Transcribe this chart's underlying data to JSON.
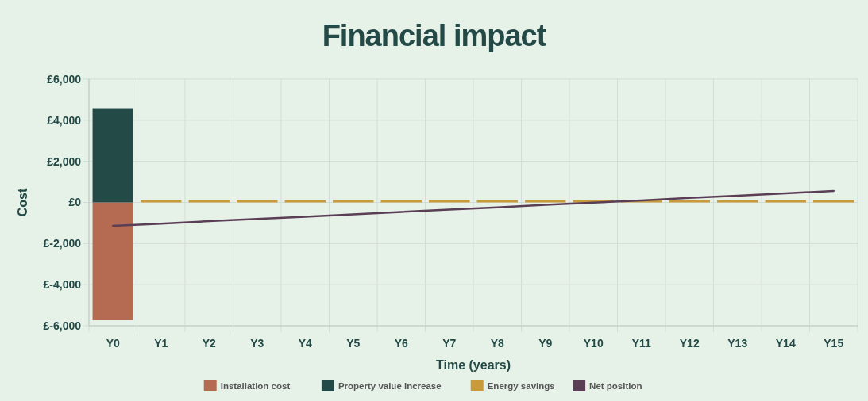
{
  "chart_data": {
    "type": "bar",
    "stacked": true,
    "title": "Financial impact",
    "xlabel": "Time (years)",
    "ylabel": "Cost",
    "categories": [
      "Y0",
      "Y1",
      "Y2",
      "Y3",
      "Y4",
      "Y5",
      "Y6",
      "Y7",
      "Y8",
      "Y9",
      "Y10",
      "Y11",
      "Y12",
      "Y13",
      "Y14",
      "Y15"
    ],
    "series": [
      {
        "name": "Installation cost",
        "color": "#b56b52",
        "values": [
          -5730,
          null,
          null,
          null,
          null,
          null,
          null,
          null,
          null,
          null,
          null,
          null,
          null,
          null,
          null,
          null
        ]
      },
      {
        "name": "Property value increase",
        "color": "#244a47",
        "values": [
          4590,
          null,
          null,
          null,
          null,
          null,
          null,
          null,
          null,
          null,
          null,
          null,
          null,
          null,
          null,
          null
        ]
      },
      {
        "name": "Energy savings",
        "color": "#c99a3a",
        "values": [
          null,
          110,
          110,
          110,
          110,
          110,
          110,
          110,
          110,
          110,
          110,
          110,
          110,
          110,
          110,
          110
        ]
      },
      {
        "name": "Net position",
        "type": "line",
        "color": "#5a3e55",
        "values": [
          -1140,
          -1030,
          -910,
          -800,
          -690,
          -580,
          -460,
          -350,
          -240,
          -120,
          -10,
          100,
          220,
          330,
          440,
          560
        ]
      }
    ],
    "ylim": [
      -6000,
      6000
    ],
    "yticks": [
      {
        "value": -6000,
        "label": "£-6,000"
      },
      {
        "value": -4000,
        "label": "£-4,000"
      },
      {
        "value": -2000,
        "label": "£-2,000"
      },
      {
        "value": 0,
        "label": "£0"
      },
      {
        "value": 2000,
        "label": "£2,000"
      },
      {
        "value": 4000,
        "label": "£4,000"
      },
      {
        "value": 6000,
        "label": "£6,000"
      }
    ],
    "grid": true,
    "legend": "bottom"
  }
}
